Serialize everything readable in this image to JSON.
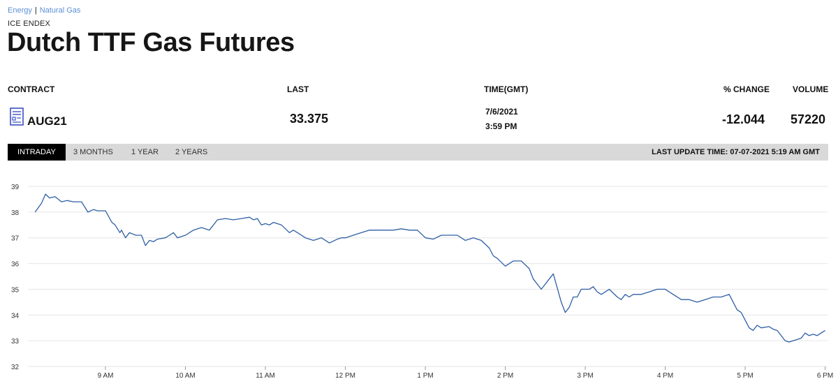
{
  "breadcrumbs": {
    "items": [
      "Energy",
      "Natural Gas"
    ],
    "separator": "|"
  },
  "exchange": "ICE ENDEX",
  "title": "Dutch TTF Gas Futures",
  "table": {
    "headers": {
      "contract": "CONTRACT",
      "last": "LAST",
      "time": "TIME(GMT)",
      "change": "% CHANGE",
      "volume": "VOLUME"
    },
    "row": {
      "contract": "AUG21",
      "last": "33.375",
      "date": "7/6/2021",
      "time": "3:59 PM",
      "change": "-12.044",
      "volume": "57220"
    }
  },
  "tabs": [
    "INTRADAY",
    "3 MONTHS",
    "1 YEAR",
    "2 YEARS"
  ],
  "active_tab": "INTRADAY",
  "last_update": "LAST UPDATE TIME: 07-07-2021 5:19 AM GMT",
  "colors": {
    "line": "#2f5fa5",
    "grid": "#e6e6e6",
    "tabbar": "#d9d9d9",
    "link": "#5b8fd6",
    "icon": "#3a4fc7"
  },
  "icon": "contract-document-icon",
  "chart_data": {
    "type": "line",
    "title": "",
    "xlabel": "",
    "ylabel": "",
    "ylim": [
      32,
      39
    ],
    "xlim": [
      8.03,
      18.03
    ],
    "yticks": [
      32,
      33,
      34,
      35,
      36,
      37,
      38,
      39
    ],
    "xticks": [
      {
        "v": 9,
        "label": "9 AM"
      },
      {
        "v": 10,
        "label": "10 AM"
      },
      {
        "v": 11,
        "label": "11 AM"
      },
      {
        "v": 12,
        "label": "12 PM"
      },
      {
        "v": 13,
        "label": "1 PM"
      },
      {
        "v": 14,
        "label": "2 PM"
      },
      {
        "v": 15,
        "label": "3 PM"
      },
      {
        "v": 16,
        "label": "4 PM"
      },
      {
        "v": 17,
        "label": "5 PM"
      },
      {
        "v": 18,
        "label": "6 PM"
      }
    ],
    "grid": true,
    "series": [
      {
        "x": [
          8.12,
          8.2,
          8.25,
          8.3,
          8.37,
          8.45,
          8.52,
          8.6,
          8.7,
          8.78,
          8.85,
          8.9,
          9.0,
          9.08,
          9.12,
          9.18,
          9.2,
          9.25,
          9.3,
          9.38,
          9.45,
          9.5,
          9.55,
          9.6,
          9.65,
          9.75,
          9.8,
          9.85,
          9.9,
          9.95,
          10.0,
          10.1,
          10.2,
          10.3,
          10.35,
          10.4,
          10.5,
          10.6,
          10.7,
          10.8,
          10.85,
          10.9,
          10.95,
          11.0,
          11.05,
          11.1,
          11.2,
          11.3,
          11.35,
          11.4,
          11.5,
          11.6,
          11.7,
          11.8,
          11.9,
          11.95,
          12.0,
          12.1,
          12.2,
          12.3,
          12.4,
          12.5,
          12.6,
          12.7,
          12.8,
          12.9,
          13.0,
          13.1,
          13.2,
          13.3,
          13.4,
          13.5,
          13.6,
          13.7,
          13.8,
          13.85,
          13.9,
          14.0,
          14.1,
          14.2,
          14.3,
          14.35,
          14.45,
          14.55,
          14.6,
          14.7,
          14.75,
          14.8,
          14.85,
          14.9,
          14.95,
          15.0,
          15.05,
          15.1,
          15.15,
          15.2,
          15.3,
          15.4,
          15.45,
          15.5,
          15.55,
          15.6,
          15.7,
          15.8,
          15.9,
          16.0,
          16.1,
          16.2,
          16.3,
          16.4,
          16.5,
          16.6,
          16.7,
          16.8,
          16.85,
          16.9,
          16.95,
          17.0,
          17.05,
          17.1,
          17.15,
          17.2,
          17.3,
          17.35,
          17.4,
          17.5,
          17.55,
          17.6,
          17.7,
          17.75,
          17.8,
          17.85,
          17.9,
          17.95,
          18.0
        ],
        "y": [
          38.0,
          38.35,
          38.7,
          38.55,
          38.6,
          38.4,
          38.45,
          38.4,
          38.4,
          38.0,
          38.1,
          38.05,
          38.05,
          37.6,
          37.5,
          37.2,
          37.3,
          37.0,
          37.2,
          37.1,
          37.1,
          36.7,
          36.9,
          36.85,
          36.95,
          37.0,
          37.1,
          37.2,
          37.0,
          37.05,
          37.1,
          37.3,
          37.4,
          37.3,
          37.5,
          37.7,
          37.75,
          37.7,
          37.75,
          37.8,
          37.7,
          37.75,
          37.5,
          37.55,
          37.5,
          37.6,
          37.5,
          37.2,
          37.3,
          37.2,
          37.0,
          36.9,
          37.0,
          36.8,
          36.95,
          37.0,
          37.0,
          37.1,
          37.2,
          37.3,
          37.3,
          37.3,
          37.3,
          37.35,
          37.3,
          37.3,
          37.0,
          36.95,
          37.1,
          37.1,
          37.1,
          36.9,
          37.0,
          36.9,
          36.6,
          36.3,
          36.2,
          35.9,
          36.1,
          36.1,
          35.8,
          35.4,
          35.0,
          35.4,
          35.6,
          34.5,
          34.1,
          34.3,
          34.7,
          34.7,
          35.0,
          35.0,
          35.0,
          35.1,
          34.9,
          34.8,
          35.0,
          34.7,
          34.6,
          34.8,
          34.7,
          34.8,
          34.8,
          34.9,
          35.0,
          35.0,
          34.8,
          34.6,
          34.6,
          34.5,
          34.6,
          34.7,
          34.7,
          34.8,
          34.5,
          34.2,
          34.1,
          33.8,
          33.5,
          33.4,
          33.6,
          33.5,
          33.55,
          33.45,
          33.4,
          33.0,
          32.95,
          33.0,
          33.1,
          33.3,
          33.2,
          33.25,
          33.2,
          33.3,
          33.4
        ]
      }
    ]
  }
}
